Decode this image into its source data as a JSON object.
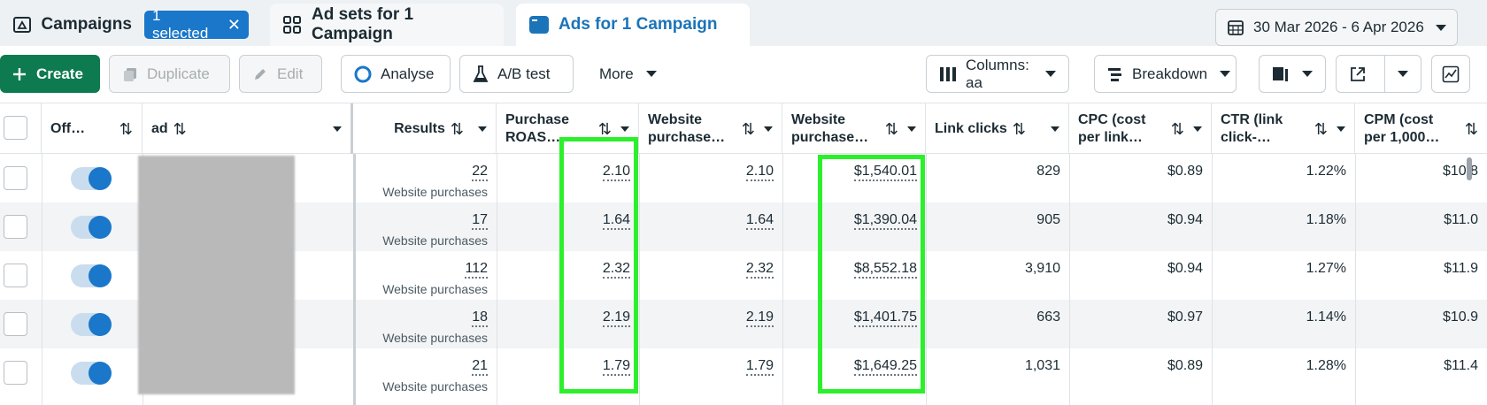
{
  "tabs": {
    "campaigns": {
      "label": "Campaigns",
      "selected_chip": "1 selected",
      "chip_close": "✕"
    },
    "adsets": {
      "label": "Ad sets for 1 Campaign"
    },
    "ads": {
      "label": "Ads for 1 Campaign"
    }
  },
  "date_range": "30 Mar 2026 - 6 Apr 2026",
  "toolbar": {
    "create": "Create",
    "duplicate": "Duplicate",
    "edit": "Edit",
    "analyse": "Analyse",
    "ab_test": "A/B test",
    "more": "More",
    "columns": "Columns: aa",
    "breakdown": "Breakdown"
  },
  "columns": {
    "off_on": "Off…",
    "ad": "ad",
    "results": "Results",
    "purchase_roas": [
      "Purchase",
      "ROAS…"
    ],
    "website_purchase_roas": [
      "Website",
      "purchase…"
    ],
    "website_purchases_value": [
      "Website",
      "purchase…"
    ],
    "link_clicks": "Link clicks",
    "cpc": [
      "CPC (cost",
      "per link…"
    ],
    "ctr": [
      "CTR (link",
      "click-…"
    ],
    "cpm": [
      "CPM (cost",
      "per 1,000…"
    ]
  },
  "rows": [
    {
      "results": "22",
      "results_sub": "Website purchases",
      "purchase_roas": "2.10",
      "website_roas": "2.10",
      "website_value": "$1,540.01",
      "link_clicks": "829",
      "cpc": "$0.89",
      "ctr": "1.22%",
      "cpm": "$10.8"
    },
    {
      "results": "17",
      "results_sub": "Website purchases",
      "purchase_roas": "1.64",
      "website_roas": "1.64",
      "website_value": "$1,390.04",
      "link_clicks": "905",
      "cpc": "$0.94",
      "ctr": "1.18%",
      "cpm": "$11.0"
    },
    {
      "results": "112",
      "results_sub": "Website purchases",
      "purchase_roas": "2.32",
      "website_roas": "2.32",
      "website_value": "$8,552.18",
      "link_clicks": "3,910",
      "cpc": "$0.94",
      "ctr": "1.27%",
      "cpm": "$11.9"
    },
    {
      "results": "18",
      "results_sub": "Website purchases",
      "purchase_roas": "2.19",
      "website_roas": "2.19",
      "website_value": "$1,401.75",
      "link_clicks": "663",
      "cpc": "$0.97",
      "ctr": "1.14%",
      "cpm": "$10.9"
    },
    {
      "results": "21",
      "results_sub": "Website purchases",
      "purchase_roas": "1.79",
      "website_roas": "1.79",
      "website_value": "$1,649.25",
      "link_clicks": "1,031",
      "cpc": "$0.89",
      "ctr": "1.28%",
      "cpm": "$11.4"
    }
  ],
  "colors": {
    "accent": "#1a77c9",
    "create_green": "#0d7a4f",
    "highlight": "#2cf02c"
  }
}
